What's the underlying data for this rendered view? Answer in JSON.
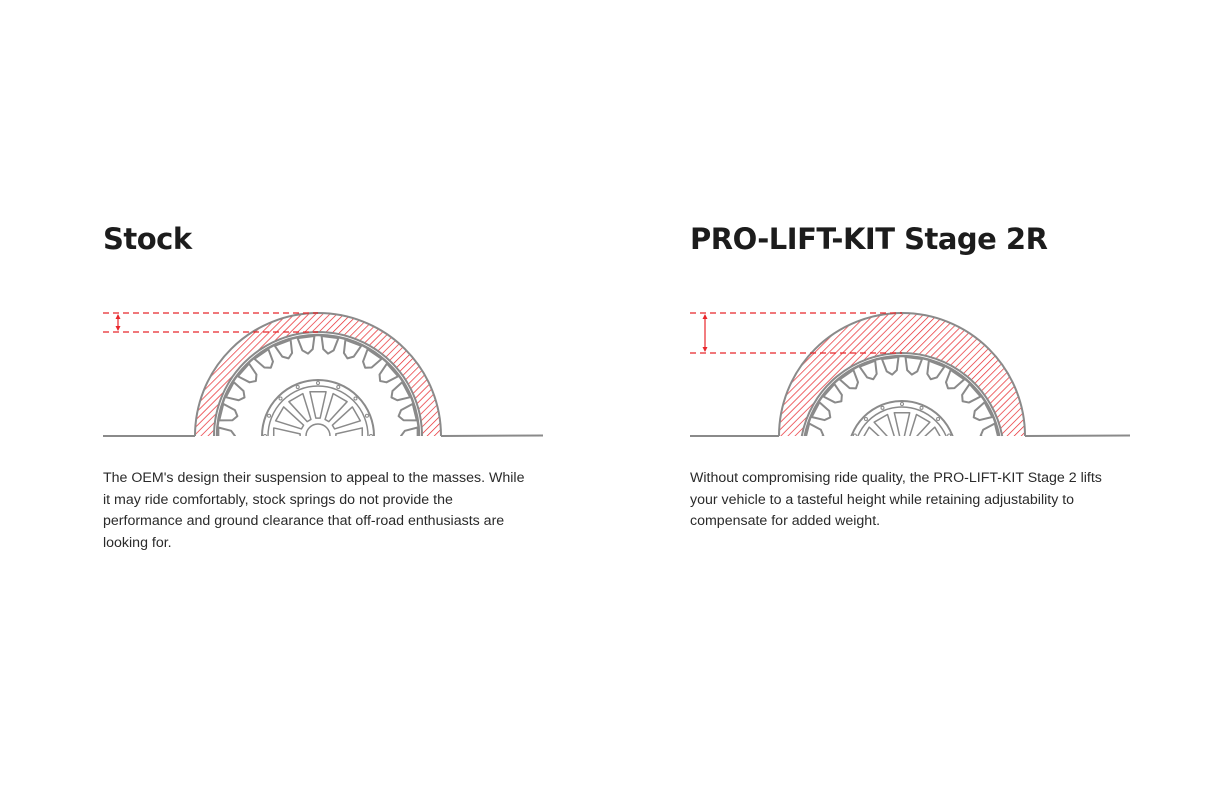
{
  "colors": {
    "accent": "#e8262b",
    "line": "#8a8a8a",
    "text": "#1e1e1e"
  },
  "panels": [
    {
      "title": "Stock",
      "description": "The OEM's design their suspension to appeal to the masses. While it may ride comfortably, stock springs do not provide the performance and ground clearance that off-road enthusiasts are looking for."
    },
    {
      "title": "PRO-LIFT-KIT Stage 2R",
      "description": "Without compromising ride quality, the PRO-LIFT-KIT Stage 2 lifts your vehicle to a tasteful height while retaining adjustability to compensate for added weight."
    }
  ]
}
